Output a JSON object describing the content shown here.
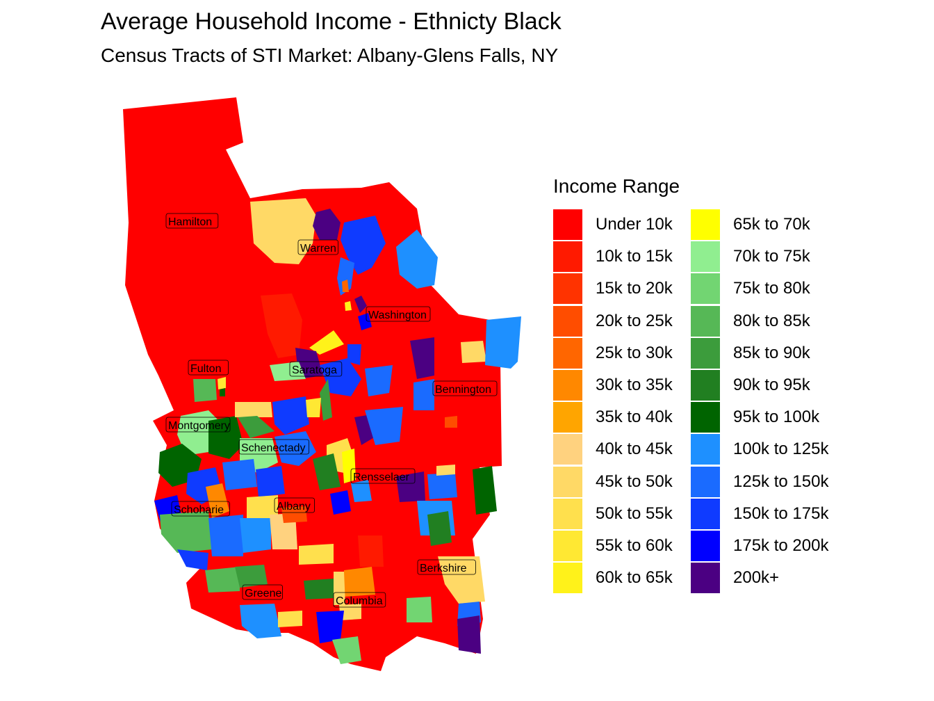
{
  "title": "Average Household Income - Ethnicty Black",
  "subtitle": "Census Tracts of STI Market: Albany-Glens Falls, NY",
  "legend": {
    "title": "Income Range",
    "items": [
      {
        "label": "Under 10k",
        "color": "#FF0000"
      },
      {
        "label": "10k to 15k",
        "color": "#FF1A00"
      },
      {
        "label": "15k to 20k",
        "color": "#FF3300"
      },
      {
        "label": "20k to 25k",
        "color": "#FF4D00"
      },
      {
        "label": "25k to 30k",
        "color": "#FF6600"
      },
      {
        "label": "30k to 35k",
        "color": "#FF8800"
      },
      {
        "label": "35k to 40k",
        "color": "#FFA500"
      },
      {
        "label": "40k to 45k",
        "color": "#FFD27F"
      },
      {
        "label": "45k to 50k",
        "color": "#FFD966"
      },
      {
        "label": "50k to 55k",
        "color": "#FFE04D"
      },
      {
        "label": "55k to 60k",
        "color": "#FFE833"
      },
      {
        "label": "60k to 65k",
        "color": "#FFF21A"
      },
      {
        "label": "65k to 70k",
        "color": "#FFFF00"
      },
      {
        "label": "70k to 75k",
        "color": "#90EE90"
      },
      {
        "label": "75k to 80k",
        "color": "#72D572"
      },
      {
        "label": "80k to 85k",
        "color": "#56B856"
      },
      {
        "label": "85k to 90k",
        "color": "#3C9C3C"
      },
      {
        "label": "90k to 95k",
        "color": "#217F21"
      },
      {
        "label": "95k to 100k",
        "color": "#006400"
      },
      {
        "label": "100k to 125k",
        "color": "#1E90FF"
      },
      {
        "label": "125k to 150k",
        "color": "#1A6BFF"
      },
      {
        "label": "150k to 175k",
        "color": "#0F3BFF"
      },
      {
        "label": "175k to 200k",
        "color": "#0000FF"
      },
      {
        "label": "200k+",
        "color": "#4B0082"
      }
    ]
  },
  "counties": [
    {
      "name": "Hamilton"
    },
    {
      "name": "Warren"
    },
    {
      "name": "Washington"
    },
    {
      "name": "Fulton"
    },
    {
      "name": "Saratoga"
    },
    {
      "name": "Bennington"
    },
    {
      "name": "Montgomery"
    },
    {
      "name": "Schenectady"
    },
    {
      "name": "Rensselaer"
    },
    {
      "name": "Albany"
    },
    {
      "name": "Schoharie"
    },
    {
      "name": "Berkshire"
    },
    {
      "name": "Greene"
    },
    {
      "name": "Columbia"
    }
  ]
}
